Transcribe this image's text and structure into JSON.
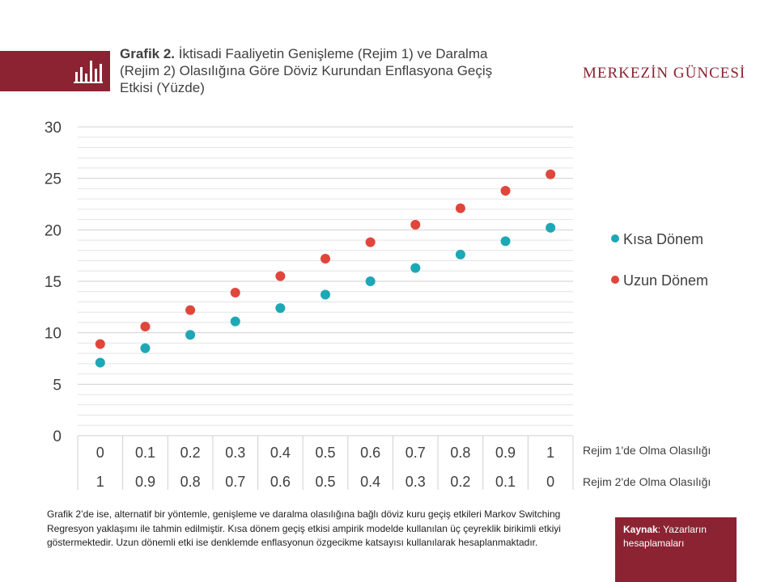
{
  "header": {
    "title_bold": "Grafik 2.",
    "title_rest": " İktisadi Faaliyetin Genişleme (Rejim 1) ve Daralma (Rejim 2) Olasılığına Göre Döviz Kurundan Enflasyona Geçiş Etkisi (Yüzde)",
    "brand": "MERKEZİN GÜNCESİ",
    "logo_icon": "bar-chart-icon"
  },
  "colors": {
    "brand": "#8b2332",
    "kisa": "#1ea7b5",
    "uzun": "#e0463b",
    "grid": "#d0d0d0"
  },
  "chart_data": {
    "type": "scatter",
    "x": [
      0,
      0.1,
      0.2,
      0.3,
      0.4,
      0.5,
      0.6,
      0.7,
      0.8,
      0.9,
      1
    ],
    "x_tick_labels_row1": [
      "0",
      "0.1",
      "0.2",
      "0.3",
      "0.4",
      "0.5",
      "0.6",
      "0.7",
      "0.8",
      "0.9",
      "1"
    ],
    "x_tick_labels_row2": [
      "1",
      "0.9",
      "0.8",
      "0.7",
      "0.6",
      "0.5",
      "0.4",
      "0.3",
      "0.2",
      "0.1",
      "0"
    ],
    "row1_label": "Rejim 1'de Olma Olasılığı",
    "row2_label": "Rejim 2'de Olma Olasılığı",
    "ylim": [
      0,
      30
    ],
    "yticks": [
      0,
      5,
      10,
      15,
      20,
      25,
      30
    ],
    "minor_gridlines": true,
    "legend_position": "right",
    "series": [
      {
        "name": "Kısa Dönem",
        "values": [
          7.1,
          8.5,
          9.8,
          11.1,
          12.4,
          13.7,
          15.0,
          16.3,
          17.6,
          18.9,
          20.2
        ]
      },
      {
        "name": "Uzun Dönem",
        "values": [
          8.9,
          10.6,
          12.2,
          13.9,
          15.5,
          17.2,
          18.8,
          20.5,
          22.1,
          23.8,
          25.4
        ]
      }
    ]
  },
  "footnote": "Grafik 2’de ise, alternatif bir yöntemle, genişleme ve daralma olasılığına bağlı döviz kuru geçiş etkileri Markov Switching Regresyon yaklaşımı ile tahmin edilmiştir. Kısa dönem geçiş etkisi ampirik modelde kullanılan üç çeyreklik birikimli etkiyi göstermektedir. Uzun dönemli etki ise denklemde enflasyonun özgecikme katsayısı kullanılarak hesaplanmaktadır.",
  "source": {
    "label": "Kaynak",
    "text": ": Yazarların hesaplamaları"
  }
}
